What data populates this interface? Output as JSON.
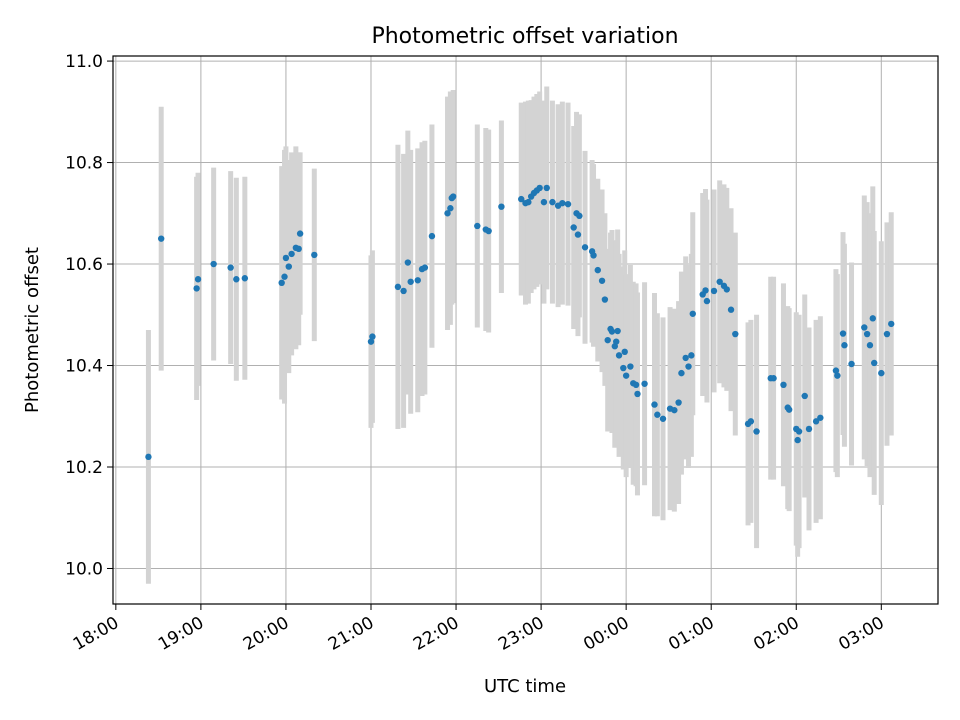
{
  "chart_data": {
    "type": "scatter",
    "title": "Photometric offset variation",
    "xlabel": "UTC time",
    "ylabel": "Photometric offset",
    "x_unit": "minutes since 18:00 UTC",
    "xlim": [
      -2,
      580
    ],
    "ylim": [
      9.93,
      11.01
    ],
    "grid": true,
    "yticks": [
      10.0,
      10.2,
      10.4,
      10.6,
      10.8,
      11.0
    ],
    "ytick_labels": [
      "10.0",
      "10.2",
      "10.4",
      "10.6",
      "10.8",
      "11.0"
    ],
    "xticks": [
      0,
      60,
      120,
      180,
      240,
      300,
      360,
      420,
      480,
      540
    ],
    "xtick_labels": [
      "18:00",
      "19:00",
      "20:00",
      "21:00",
      "22:00",
      "23:00",
      "00:00",
      "01:00",
      "02:00",
      "03:00"
    ],
    "point_color": "#1f77b4",
    "errorbar_color": "#d3d3d3",
    "series": [
      {
        "points": [
          [
            23,
            10.22,
            0.25
          ],
          [
            32,
            10.65,
            0.26
          ],
          [
            57,
            10.552,
            0.22
          ],
          [
            58,
            10.57,
            0.21
          ],
          [
            69,
            10.6,
            0.19
          ],
          [
            81,
            10.593,
            0.19
          ],
          [
            85,
            10.57,
            0.2
          ],
          [
            91,
            10.572,
            0.2
          ],
          [
            117,
            10.563,
            0.23
          ],
          [
            119,
            10.575,
            0.25
          ],
          [
            120,
            10.612,
            0.22
          ],
          [
            122,
            10.595,
            0.21
          ],
          [
            124,
            10.62,
            0.2
          ],
          [
            127,
            10.632,
            0.2
          ],
          [
            129,
            10.63,
            0.19
          ],
          [
            130,
            10.66,
            0.16
          ],
          [
            140,
            10.618,
            0.17
          ],
          [
            180,
            10.447,
            0.17
          ],
          [
            181,
            10.457,
            0.17
          ],
          [
            199,
            10.555,
            0.28
          ],
          [
            203,
            10.547,
            0.27
          ],
          [
            206,
            10.603,
            0.26
          ],
          [
            208,
            10.565,
            0.26
          ],
          [
            213,
            10.568,
            0.26
          ],
          [
            216,
            10.59,
            0.25
          ],
          [
            218,
            10.593,
            0.25
          ],
          [
            223,
            10.655,
            0.22
          ],
          [
            234,
            10.7,
            0.23
          ],
          [
            236,
            10.71,
            0.23
          ],
          [
            237,
            10.73,
            0.21
          ],
          [
            238,
            10.733,
            0.21
          ],
          [
            255,
            10.675,
            0.2
          ],
          [
            261,
            10.668,
            0.2
          ],
          [
            263,
            10.665,
            0.2
          ],
          [
            272,
            10.713,
            0.17
          ],
          [
            286,
            10.728,
            0.19
          ],
          [
            289,
            10.72,
            0.2
          ],
          [
            291,
            10.722,
            0.2
          ],
          [
            293,
            10.733,
            0.19
          ],
          [
            295,
            10.74,
            0.19
          ],
          [
            297,
            10.745,
            0.19
          ],
          [
            299,
            10.75,
            0.19
          ],
          [
            302,
            10.722,
            0.2
          ],
          [
            304,
            10.75,
            0.2
          ],
          [
            308,
            10.722,
            0.2
          ],
          [
            312,
            10.715,
            0.2
          ],
          [
            315,
            10.72,
            0.2
          ],
          [
            319,
            10.718,
            0.2
          ],
          [
            323,
            10.672,
            0.2
          ],
          [
            325,
            10.7,
            0.2
          ],
          [
            326,
            10.658,
            0.2
          ],
          [
            327,
            10.695,
            0.2
          ],
          [
            331,
            10.633,
            0.19
          ],
          [
            336,
            10.625,
            0.18
          ],
          [
            337,
            10.617,
            0.18
          ],
          [
            340,
            10.588,
            0.18
          ],
          [
            343,
            10.567,
            0.18
          ],
          [
            345,
            10.53,
            0.17
          ],
          [
            347,
            10.45,
            0.18
          ],
          [
            349,
            10.472,
            0.19
          ],
          [
            350,
            10.467,
            0.2
          ],
          [
            352,
            10.438,
            0.2
          ],
          [
            353,
            10.447,
            0.2
          ],
          [
            354,
            10.468,
            0.2
          ],
          [
            355,
            10.42,
            0.2
          ],
          [
            358,
            10.395,
            0.2
          ],
          [
            359,
            10.427,
            0.2
          ],
          [
            360,
            10.38,
            0.2
          ],
          [
            363,
            10.398,
            0.2
          ],
          [
            365,
            10.365,
            0.2
          ],
          [
            367,
            10.362,
            0.2
          ],
          [
            368,
            10.344,
            0.2
          ],
          [
            373,
            10.364,
            0.2
          ],
          [
            380,
            10.323,
            0.22
          ],
          [
            382,
            10.303,
            0.2
          ],
          [
            386,
            10.295,
            0.2
          ],
          [
            391,
            10.315,
            0.2
          ],
          [
            394,
            10.312,
            0.2
          ],
          [
            397,
            10.327,
            0.2
          ],
          [
            399,
            10.385,
            0.2
          ],
          [
            402,
            10.415,
            0.2
          ],
          [
            404,
            10.398,
            0.2
          ],
          [
            406,
            10.42,
            0.2
          ],
          [
            407,
            10.502,
            0.2
          ],
          [
            414,
            10.54,
            0.2
          ],
          [
            416,
            10.548,
            0.2
          ],
          [
            417,
            10.527,
            0.2
          ],
          [
            422,
            10.547,
            0.2
          ],
          [
            426,
            10.565,
            0.2
          ],
          [
            429,
            10.557,
            0.2
          ],
          [
            431,
            10.55,
            0.2
          ],
          [
            434,
            10.51,
            0.2
          ],
          [
            437,
            10.462,
            0.2
          ],
          [
            446,
            10.285,
            0.2
          ],
          [
            448,
            10.29,
            0.2
          ],
          [
            452,
            10.27,
            0.23
          ],
          [
            462,
            10.375,
            0.2
          ],
          [
            464,
            10.375,
            0.2
          ],
          [
            471,
            10.362,
            0.2
          ],
          [
            474,
            10.317,
            0.2
          ],
          [
            475,
            10.313,
            0.2
          ],
          [
            480,
            10.275,
            0.23
          ],
          [
            481,
            10.253,
            0.23
          ],
          [
            482,
            10.27,
            0.23
          ],
          [
            486,
            10.34,
            0.2
          ],
          [
            489,
            10.275,
            0.2
          ],
          [
            494,
            10.29,
            0.2
          ],
          [
            497,
            10.297,
            0.2
          ],
          [
            508,
            10.39,
            0.2
          ],
          [
            509,
            10.38,
            0.2
          ],
          [
            513,
            10.463,
            0.2
          ],
          [
            514,
            10.44,
            0.2
          ],
          [
            519,
            10.403,
            0.2
          ],
          [
            528,
            10.475,
            0.26
          ],
          [
            530,
            10.462,
            0.26
          ],
          [
            532,
            10.44,
            0.26
          ],
          [
            534,
            10.493,
            0.26
          ],
          [
            535,
            10.405,
            0.26
          ],
          [
            540,
            10.385,
            0.26
          ],
          [
            544,
            10.462,
            0.22
          ],
          [
            547,
            10.482,
            0.22
          ]
        ]
      }
    ]
  }
}
